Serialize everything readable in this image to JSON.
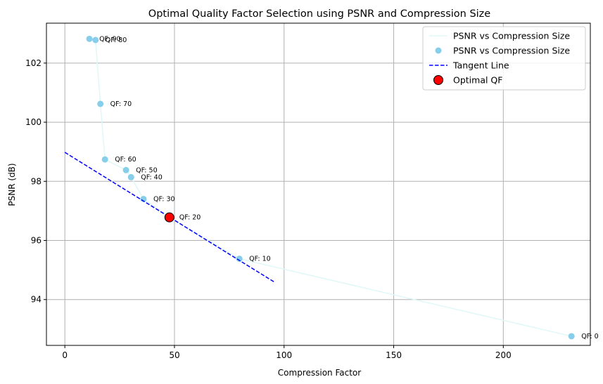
{
  "chart_data": {
    "type": "scatter",
    "title": "Optimal Quality Factor Selection using PSNR and Compression Size",
    "xlabel": "Compression Factor",
    "ylabel": "PSNR (dB)",
    "xlim": [
      -8.4,
      239.7
    ],
    "ylim": [
      92.45,
      103.35
    ],
    "xticks": [
      0,
      50,
      100,
      150,
      200
    ],
    "yticks": [
      94,
      96,
      98,
      100,
      102
    ],
    "grid": true,
    "legend_position": "top-right",
    "colors": {
      "points": "#87ceeb",
      "line": "#e0f7f7",
      "tangent": "#0000ff",
      "optimal_fill": "#ff0000",
      "optimal_edge": "#000000",
      "grid": "#b0b0b0"
    },
    "series": [
      {
        "name": "PSNR vs Compression Size",
        "kind": "line",
        "points": [
          [
            11.2,
            102.82
          ],
          [
            14.0,
            102.78
          ],
          [
            16.2,
            100.62
          ],
          [
            18.3,
            98.74
          ],
          [
            27.9,
            98.38
          ],
          [
            30.2,
            98.14
          ],
          [
            35.9,
            97.4
          ],
          [
            47.7,
            96.78
          ],
          [
            79.6,
            95.38
          ],
          [
            231.1,
            92.76
          ]
        ]
      },
      {
        "name": "PSNR vs Compression Size",
        "kind": "scatter",
        "points": [
          [
            11.2,
            102.82
          ],
          [
            14.0,
            102.78
          ],
          [
            16.2,
            100.62
          ],
          [
            18.3,
            98.74
          ],
          [
            27.9,
            98.38
          ],
          [
            30.2,
            98.14
          ],
          [
            35.9,
            97.4
          ],
          [
            47.7,
            96.78
          ],
          [
            79.6,
            95.38
          ],
          [
            231.1,
            92.76
          ]
        ],
        "labels": [
          "QF: 90",
          "QF: 80",
          "QF: 70",
          "QF: 60",
          "QF: 50",
          "QF: 40",
          "QF: 30",
          "QF: 20",
          "QF: 10",
          "QF: 0"
        ]
      },
      {
        "name": "Tangent Line",
        "kind": "dashed-line",
        "points": [
          [
            0,
            98.98
          ],
          [
            95.4,
            94.6
          ]
        ]
      },
      {
        "name": "Optimal QF",
        "kind": "marker",
        "points": [
          [
            47.7,
            96.78
          ]
        ]
      }
    ]
  }
}
